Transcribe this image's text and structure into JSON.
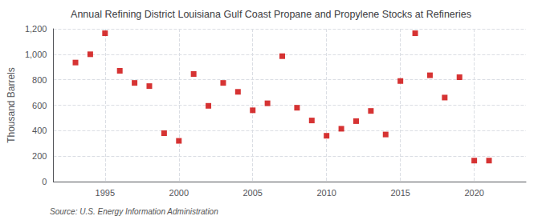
{
  "chart_data": {
    "type": "scatter",
    "title": "Annual Refining District Louisiana Gulf Coast Propane and Propylene Stocks at Refineries",
    "ylabel": "Thousand Barrels",
    "source": "Source: U.S. Energy Information Administration",
    "x": [
      1993,
      1994,
      1995,
      1996,
      1997,
      1998,
      1999,
      2000,
      2001,
      2002,
      2003,
      2004,
      2005,
      2006,
      2007,
      2008,
      2009,
      2010,
      2011,
      2012,
      2013,
      2014,
      2015,
      2016,
      2017,
      2018,
      2019,
      2020,
      2021
    ],
    "values": [
      935,
      1000,
      1165,
      870,
      775,
      750,
      380,
      320,
      845,
      595,
      775,
      705,
      560,
      615,
      985,
      580,
      480,
      360,
      415,
      475,
      555,
      370,
      790,
      1165,
      835,
      660,
      820,
      165,
      165
    ],
    "color": "#cc0000",
    "marker": "square",
    "xlim": [
      1991.5,
      2023.5
    ],
    "xticks": [
      1995,
      2000,
      2005,
      2010,
      2015,
      2020
    ],
    "ylim": [
      0,
      1200
    ],
    "yticks": [
      0,
      200,
      400,
      600,
      800,
      {
        "value": 1000,
        "label": "1,000"
      },
      {
        "value": 1200,
        "label": "1,200"
      }
    ],
    "grid": true
  }
}
